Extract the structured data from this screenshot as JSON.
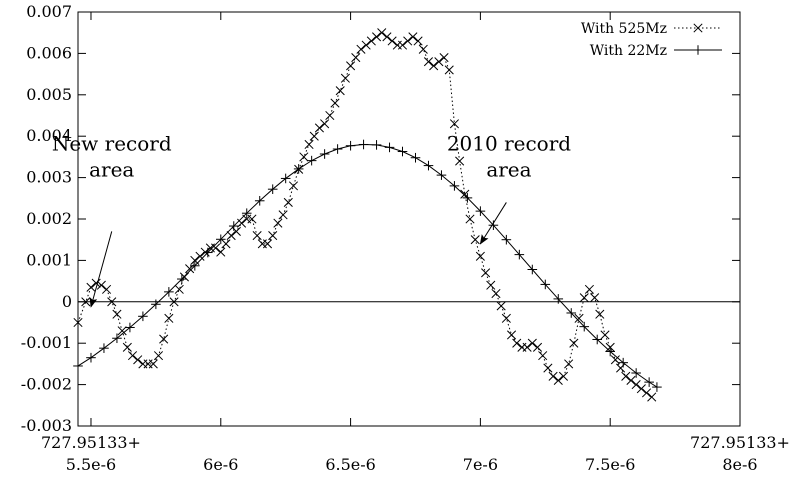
{
  "chart_data": {
    "type": "line",
    "title": "",
    "xlabel": "",
    "ylabel": "",
    "xlim": [
      5.45e-06,
      8e-06
    ],
    "ylim": [
      -0.003,
      0.007
    ],
    "grid": false,
    "legend_position": "top-right",
    "x_tick_labels": [
      {
        "value": 5.5e-06,
        "line1": "727.95133+",
        "line2": "5.5e-6"
      },
      {
        "value": 6e-06,
        "line1": "",
        "line2": "6e-6"
      },
      {
        "value": 6.5e-06,
        "line1": "",
        "line2": "6.5e-6"
      },
      {
        "value": 7e-06,
        "line1": "",
        "line2": "7e-6"
      },
      {
        "value": 7.5e-06,
        "line1": "",
        "line2": "7.5e-6"
      },
      {
        "value": 8e-06,
        "line1": "727.95133+",
        "line2": "8e-6"
      }
    ],
    "y_tick_labels": [
      {
        "value": -0.003,
        "label": "-0.003"
      },
      {
        "value": -0.002,
        "label": "-0.002"
      },
      {
        "value": -0.001,
        "label": "-0.001"
      },
      {
        "value": 0,
        "label": "0"
      },
      {
        "value": 0.001,
        "label": "0.001"
      },
      {
        "value": 0.002,
        "label": "0.002"
      },
      {
        "value": 0.003,
        "label": "0.003"
      },
      {
        "value": 0.004,
        "label": "0.004"
      },
      {
        "value": 0.005,
        "label": "0.005"
      },
      {
        "value": 0.006,
        "label": "0.006"
      },
      {
        "value": 0.007,
        "label": "0.007"
      }
    ],
    "zero_line": true,
    "series": [
      {
        "name": "With 525Mz",
        "marker": "x",
        "line_style": "dotted",
        "color": "#000000",
        "points": [
          [
            5.45e-06,
            -0.0005
          ],
          [
            5.48e-06,
            0.0
          ],
          [
            5.5e-06,
            0.00035
          ],
          [
            5.52e-06,
            0.00045
          ],
          [
            5.54e-06,
            0.0004
          ],
          [
            5.56e-06,
            0.0003
          ],
          [
            5.58e-06,
            0.0
          ],
          [
            5.6e-06,
            -0.0003
          ],
          [
            5.62e-06,
            -0.0007
          ],
          [
            5.64e-06,
            -0.0011
          ],
          [
            5.66e-06,
            -0.0013
          ],
          [
            5.68e-06,
            -0.0014
          ],
          [
            5.7e-06,
            -0.0015
          ],
          [
            5.72e-06,
            -0.0015
          ],
          [
            5.74e-06,
            -0.0015
          ],
          [
            5.76e-06,
            -0.0013
          ],
          [
            5.78e-06,
            -0.0009
          ],
          [
            5.8e-06,
            -0.0004
          ],
          [
            5.82e-06,
            0.0
          ],
          [
            5.84e-06,
            0.0003
          ],
          [
            5.86e-06,
            0.0006
          ],
          [
            5.88e-06,
            0.0008
          ],
          [
            5.9e-06,
            0.001
          ],
          [
            5.92e-06,
            0.0011
          ],
          [
            5.94e-06,
            0.0012
          ],
          [
            5.96e-06,
            0.0013
          ],
          [
            5.98e-06,
            0.0013
          ],
          [
            6e-06,
            0.0012
          ],
          [
            6.02e-06,
            0.0014
          ],
          [
            6.04e-06,
            0.0016
          ],
          [
            6.06e-06,
            0.0017
          ],
          [
            6.08e-06,
            0.0019
          ],
          [
            6.1e-06,
            0.002
          ],
          [
            6.12e-06,
            0.002
          ],
          [
            6.14e-06,
            0.0016
          ],
          [
            6.16e-06,
            0.0014
          ],
          [
            6.18e-06,
            0.0014
          ],
          [
            6.2e-06,
            0.0016
          ],
          [
            6.22e-06,
            0.0019
          ],
          [
            6.24e-06,
            0.0021
          ],
          [
            6.26e-06,
            0.0024
          ],
          [
            6.28e-06,
            0.0028
          ],
          [
            6.3e-06,
            0.0032
          ],
          [
            6.32e-06,
            0.0035
          ],
          [
            6.34e-06,
            0.0038
          ],
          [
            6.36e-06,
            0.004
          ],
          [
            6.38e-06,
            0.0042
          ],
          [
            6.4e-06,
            0.0043
          ],
          [
            6.42e-06,
            0.0045
          ],
          [
            6.44e-06,
            0.0048
          ],
          [
            6.46e-06,
            0.0051
          ],
          [
            6.48e-06,
            0.0054
          ],
          [
            6.5e-06,
            0.0057
          ],
          [
            6.52e-06,
            0.0059
          ],
          [
            6.54e-06,
            0.0061
          ],
          [
            6.56e-06,
            0.0062
          ],
          [
            6.58e-06,
            0.0063
          ],
          [
            6.6e-06,
            0.0064
          ],
          [
            6.62e-06,
            0.0065
          ],
          [
            6.64e-06,
            0.0064
          ],
          [
            6.66e-06,
            0.0063
          ],
          [
            6.68e-06,
            0.0062
          ],
          [
            6.7e-06,
            0.0062
          ],
          [
            6.72e-06,
            0.0063
          ],
          [
            6.74e-06,
            0.0064
          ],
          [
            6.76e-06,
            0.0063
          ],
          [
            6.78e-06,
            0.0061
          ],
          [
            6.8e-06,
            0.0058
          ],
          [
            6.82e-06,
            0.0057
          ],
          [
            6.84e-06,
            0.0058
          ],
          [
            6.86e-06,
            0.0059
          ],
          [
            6.88e-06,
            0.0056
          ],
          [
            6.9e-06,
            0.0043
          ],
          [
            6.92e-06,
            0.0034
          ],
          [
            6.94e-06,
            0.0026
          ],
          [
            6.96e-06,
            0.002
          ],
          [
            6.98e-06,
            0.0015
          ],
          [
            7e-06,
            0.0011
          ],
          [
            7.02e-06,
            0.0007
          ],
          [
            7.04e-06,
            0.0004
          ],
          [
            7.06e-06,
            0.0002
          ],
          [
            7.08e-06,
            -0.0001
          ],
          [
            7.1e-06,
            -0.0004
          ],
          [
            7.12e-06,
            -0.0008
          ],
          [
            7.14e-06,
            -0.001
          ],
          [
            7.16e-06,
            -0.0011
          ],
          [
            7.18e-06,
            -0.0011
          ],
          [
            7.2e-06,
            -0.001
          ],
          [
            7.22e-06,
            -0.0011
          ],
          [
            7.24e-06,
            -0.0013
          ],
          [
            7.26e-06,
            -0.0016
          ],
          [
            7.28e-06,
            -0.0018
          ],
          [
            7.3e-06,
            -0.0019
          ],
          [
            7.32e-06,
            -0.0018
          ],
          [
            7.34e-06,
            -0.0015
          ],
          [
            7.36e-06,
            -0.001
          ],
          [
            7.38e-06,
            -0.0004
          ],
          [
            7.4e-06,
            0.0001
          ],
          [
            7.42e-06,
            0.0003
          ],
          [
            7.44e-06,
            0.0001
          ],
          [
            7.46e-06,
            -0.0003
          ],
          [
            7.48e-06,
            -0.0008
          ],
          [
            7.5e-06,
            -0.0011
          ],
          [
            7.52e-06,
            -0.0014
          ],
          [
            7.54e-06,
            -0.0016
          ],
          [
            7.56e-06,
            -0.0018
          ],
          [
            7.58e-06,
            -0.0019
          ],
          [
            7.6e-06,
            -0.002
          ],
          [
            7.62e-06,
            -0.0021
          ],
          [
            7.64e-06,
            -0.0022
          ],
          [
            7.66e-06,
            -0.0023
          ]
        ]
      },
      {
        "name": "With 22Mz",
        "marker": "+",
        "line_style": "solid",
        "color": "#000000",
        "points": [
          [
            5.45e-06,
            -0.00155
          ],
          [
            5.5e-06,
            -0.00135
          ],
          [
            5.55e-06,
            -0.00112
          ],
          [
            5.6e-06,
            -0.00088
          ],
          [
            5.65e-06,
            -0.00062
          ],
          [
            5.7e-06,
            -0.00035
          ],
          [
            5.75e-06,
            -6e-05
          ],
          [
            5.8e-06,
            0.00024
          ],
          [
            5.85e-06,
            0.00055
          ],
          [
            5.9e-06,
            0.00087
          ],
          [
            5.95e-06,
            0.00119
          ],
          [
            6e-06,
            0.00151
          ],
          [
            6.05e-06,
            0.00183
          ],
          [
            6.1e-06,
            0.00214
          ],
          [
            6.15e-06,
            0.00244
          ],
          [
            6.2e-06,
            0.00272
          ],
          [
            6.25e-06,
            0.00298
          ],
          [
            6.3e-06,
            0.00321
          ],
          [
            6.35e-06,
            0.00341
          ],
          [
            6.4e-06,
            0.00357
          ],
          [
            6.45e-06,
            0.00369
          ],
          [
            6.5e-06,
            0.00377
          ],
          [
            6.55e-06,
            0.0038
          ],
          [
            6.6e-06,
            0.00379
          ],
          [
            6.65e-06,
            0.00373
          ],
          [
            6.7e-06,
            0.00363
          ],
          [
            6.75e-06,
            0.00348
          ],
          [
            6.8e-06,
            0.00329
          ],
          [
            6.85e-06,
            0.00306
          ],
          [
            6.9e-06,
            0.0028
          ],
          [
            6.95e-06,
            0.00251
          ],
          [
            7e-06,
            0.00219
          ],
          [
            7.05e-06,
            0.00185
          ],
          [
            7.1e-06,
            0.0015
          ],
          [
            7.15e-06,
            0.00114
          ],
          [
            7.2e-06,
            0.00078
          ],
          [
            7.25e-06,
            0.00042
          ],
          [
            7.3e-06,
            7e-05
          ],
          [
            7.35e-06,
            -0.00027
          ],
          [
            7.4e-06,
            -0.0006
          ],
          [
            7.45e-06,
            -0.00091
          ],
          [
            7.5e-06,
            -0.0012
          ],
          [
            7.55e-06,
            -0.00147
          ],
          [
            7.6e-06,
            -0.00172
          ],
          [
            7.65e-06,
            -0.00194
          ],
          [
            7.68e-06,
            -0.00206
          ]
        ]
      }
    ],
    "annotations": [
      {
        "lines": [
          "New record",
          "area"
        ],
        "text_x": 5.58e-06,
        "text_y": 0.00365,
        "arrow_from": [
          5.58e-06,
          0.0017
        ],
        "arrow_to": [
          5.5e-06,
          -0.00012
        ]
      },
      {
        "lines": [
          "2010 record",
          "area"
        ],
        "text_x": 7.11e-06,
        "text_y": 0.00365,
        "arrow_from": [
          7.1e-06,
          0.0024
        ],
        "arrow_to": [
          7e-06,
          0.0014
        ]
      }
    ]
  }
}
